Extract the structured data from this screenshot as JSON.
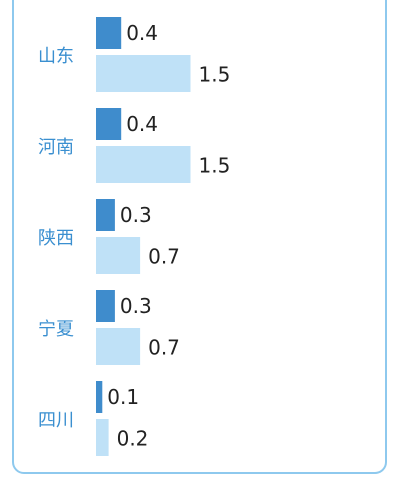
{
  "chart_data": {
    "type": "bar",
    "orientation": "horizontal",
    "categories": [
      "山东",
      "河南",
      "陕西",
      "宁夏",
      "四川"
    ],
    "series": [
      {
        "values": [
          0.4,
          0.4,
          0.3,
          0.3,
          0.1
        ],
        "color": "#3f8ccc"
      },
      {
        "values": [
          1.5,
          1.5,
          0.7,
          0.7,
          0.2
        ],
        "color": "#bfe1f7"
      }
    ],
    "xlim": [
      0,
      1.5
    ],
    "grid": false,
    "legend": "none"
  }
}
